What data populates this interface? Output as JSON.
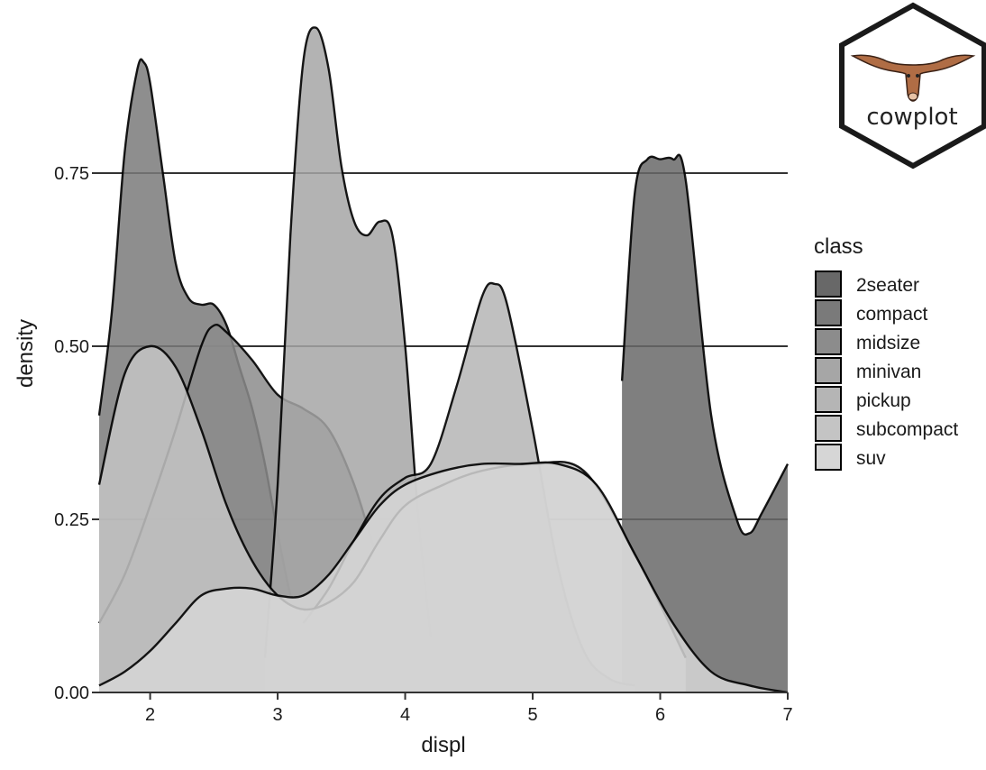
{
  "chart_data": {
    "type": "area",
    "xlabel": "displ",
    "ylabel": "density",
    "xlim": [
      1.6,
      7.0
    ],
    "ylim": [
      0,
      1.0
    ],
    "x_ticks": [
      2,
      3,
      4,
      5,
      6,
      7
    ],
    "y_ticks": [
      0.0,
      0.25,
      0.5,
      0.75
    ],
    "y_tick_labels": [
      "0.00",
      "0.25",
      "0.50",
      "0.75"
    ],
    "grid": "horizontal major lines",
    "legend": {
      "title": "class",
      "position": "right"
    },
    "logo_text": "cowplot",
    "series": [
      {
        "name": "2seater",
        "color": "#686868",
        "x": [
          5.7,
          5.8,
          5.9,
          6.0,
          6.1,
          6.2,
          6.4,
          6.6,
          6.7,
          6.8,
          7.0
        ],
        "y": [
          0.45,
          0.72,
          0.77,
          0.77,
          0.77,
          0.74,
          0.4,
          0.25,
          0.23,
          0.26,
          0.33
        ]
      },
      {
        "name": "compact",
        "color": "#7a7a7a",
        "x": [
          1.6,
          1.7,
          1.8,
          1.9,
          1.95,
          2.0,
          2.1,
          2.2,
          2.3,
          2.4,
          2.5,
          2.6,
          2.7,
          2.8,
          2.9,
          3.0,
          3.1,
          3.2,
          3.3,
          3.4
        ],
        "y": [
          0.4,
          0.55,
          0.78,
          0.9,
          0.91,
          0.88,
          0.75,
          0.62,
          0.57,
          0.56,
          0.56,
          0.53,
          0.47,
          0.41,
          0.33,
          0.23,
          0.14,
          0.07,
          0.03,
          0.01
        ]
      },
      {
        "name": "midsize",
        "color": "#8c8c8c",
        "x": [
          1.6,
          1.8,
          2.0,
          2.2,
          2.4,
          2.5,
          2.6,
          2.8,
          3.0,
          3.2,
          3.4,
          3.6,
          3.8,
          4.0,
          4.2
        ],
        "y": [
          0.1,
          0.17,
          0.27,
          0.38,
          0.5,
          0.53,
          0.52,
          0.48,
          0.43,
          0.41,
          0.38,
          0.3,
          0.18,
          0.06,
          0.02
        ]
      },
      {
        "name": "minivan",
        "color": "#a6a6a6",
        "x": [
          2.9,
          3.0,
          3.1,
          3.2,
          3.3,
          3.4,
          3.5,
          3.6,
          3.7,
          3.8,
          3.9,
          4.0,
          4.1,
          4.2
        ],
        "y": [
          0.05,
          0.3,
          0.66,
          0.91,
          0.96,
          0.9,
          0.76,
          0.68,
          0.66,
          0.68,
          0.66,
          0.5,
          0.26,
          0.08
        ]
      },
      {
        "name": "pickup",
        "color": "#b5b5b5",
        "x": [
          3.2,
          3.4,
          3.6,
          3.8,
          4.0,
          4.2,
          4.4,
          4.6,
          4.7,
          4.8,
          5.0,
          5.2,
          5.4,
          5.6,
          5.8
        ],
        "y": [
          0.1,
          0.15,
          0.22,
          0.28,
          0.31,
          0.33,
          0.44,
          0.57,
          0.59,
          0.56,
          0.38,
          0.18,
          0.06,
          0.02,
          0.01
        ]
      },
      {
        "name": "subcompact",
        "color": "#c4c4c4",
        "x": [
          1.6,
          1.8,
          2.0,
          2.2,
          2.4,
          2.6,
          2.8,
          3.0,
          3.2,
          3.4,
          3.6,
          3.8,
          4.0,
          4.3,
          4.6,
          5.0,
          5.4,
          5.8,
          6.2
        ],
        "y": [
          0.3,
          0.46,
          0.5,
          0.47,
          0.38,
          0.27,
          0.19,
          0.14,
          0.12,
          0.13,
          0.16,
          0.22,
          0.27,
          0.3,
          0.32,
          0.33,
          0.32,
          0.2,
          0.05
        ]
      },
      {
        "name": "suv",
        "color": "#d6d6d6",
        "x": [
          1.6,
          1.8,
          2.0,
          2.2,
          2.4,
          2.6,
          2.8,
          3.0,
          3.2,
          3.4,
          3.6,
          3.8,
          4.0,
          4.3,
          4.6,
          4.9,
          5.2,
          5.5,
          5.8,
          6.1,
          6.4,
          6.7,
          7.0
        ],
        "y": [
          0.01,
          0.03,
          0.06,
          0.1,
          0.14,
          0.15,
          0.15,
          0.14,
          0.14,
          0.17,
          0.22,
          0.27,
          0.3,
          0.32,
          0.33,
          0.33,
          0.33,
          0.3,
          0.2,
          0.1,
          0.03,
          0.01,
          0.0
        ]
      }
    ]
  }
}
